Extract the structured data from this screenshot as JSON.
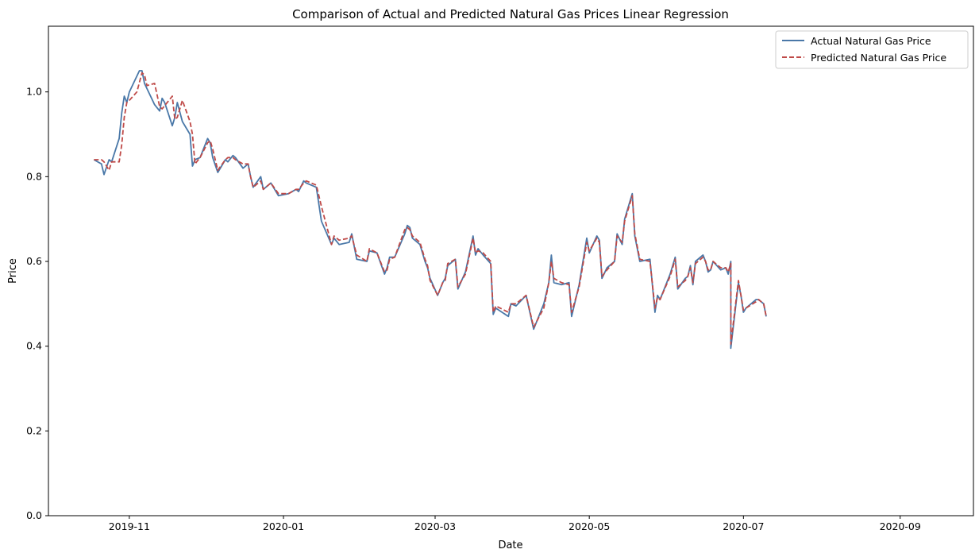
{
  "chart_data": {
    "type": "line",
    "title": "Comparison of Actual and Predicted Natural Gas Prices Linear Regression",
    "xlabel": "Date",
    "ylabel": "Price",
    "xlim": [
      "2019-09-30",
      "2020-09-30"
    ],
    "ylim": [
      0,
      1.155
    ],
    "x_ticks": [
      "2019-11",
      "2020-01",
      "2020-03",
      "2020-05",
      "2020-07",
      "2020-09"
    ],
    "y_ticks": [
      "0.0",
      "0.2",
      "0.4",
      "0.6",
      "0.8",
      "1.0"
    ],
    "legend_position": "top-right",
    "grid": false,
    "series": [
      {
        "name": "Actual Natural Gas Price",
        "color": "#4a78a8",
        "dash": "solid",
        "points": [
          [
            "2019-10-18",
            0.84
          ],
          [
            "2019-10-21",
            0.83
          ],
          [
            "2019-10-22",
            0.805
          ],
          [
            "2019-10-24",
            0.84
          ],
          [
            "2019-10-25",
            0.835
          ],
          [
            "2019-10-28",
            0.89
          ],
          [
            "2019-10-29",
            0.95
          ],
          [
            "2019-10-30",
            0.99
          ],
          [
            "2019-10-31",
            0.975
          ],
          [
            "2019-11-01",
            1.0
          ],
          [
            "2019-11-05",
            1.05
          ],
          [
            "2019-11-06",
            1.05
          ],
          [
            "2019-11-07",
            1.02
          ],
          [
            "2019-11-11",
            0.97
          ],
          [
            "2019-11-13",
            0.955
          ],
          [
            "2019-11-14",
            0.985
          ],
          [
            "2019-11-15",
            0.975
          ],
          [
            "2019-11-18",
            0.92
          ],
          [
            "2019-11-19",
            0.94
          ],
          [
            "2019-11-20",
            0.975
          ],
          [
            "2019-11-22",
            0.93
          ],
          [
            "2019-11-25",
            0.9
          ],
          [
            "2019-11-26",
            0.825
          ],
          [
            "2019-11-27",
            0.84
          ],
          [
            "2019-11-29",
            0.845
          ],
          [
            "2019-12-02",
            0.89
          ],
          [
            "2019-12-03",
            0.88
          ],
          [
            "2019-12-04",
            0.845
          ],
          [
            "2019-12-06",
            0.81
          ],
          [
            "2019-12-09",
            0.84
          ],
          [
            "2019-12-10",
            0.835
          ],
          [
            "2019-12-12",
            0.85
          ],
          [
            "2019-12-13",
            0.845
          ],
          [
            "2019-12-16",
            0.82
          ],
          [
            "2019-12-18",
            0.83
          ],
          [
            "2019-12-19",
            0.8
          ],
          [
            "2019-12-20",
            0.775
          ],
          [
            "2019-12-23",
            0.8
          ],
          [
            "2019-12-24",
            0.77
          ],
          [
            "2019-12-27",
            0.785
          ],
          [
            "2019-12-30",
            0.755
          ],
          [
            "2020-01-03",
            0.76
          ],
          [
            "2020-01-06",
            0.77
          ],
          [
            "2020-01-07",
            0.765
          ],
          [
            "2020-01-09",
            0.79
          ],
          [
            "2020-01-10",
            0.785
          ],
          [
            "2020-01-14",
            0.775
          ],
          [
            "2020-01-16",
            0.695
          ],
          [
            "2020-01-20",
            0.64
          ],
          [
            "2020-01-21",
            0.655
          ],
          [
            "2020-01-23",
            0.64
          ],
          [
            "2020-01-27",
            0.645
          ],
          [
            "2020-01-28",
            0.665
          ],
          [
            "2020-01-30",
            0.605
          ],
          [
            "2020-02-03",
            0.6
          ],
          [
            "2020-02-04",
            0.625
          ],
          [
            "2020-02-07",
            0.62
          ],
          [
            "2020-02-10",
            0.57
          ],
          [
            "2020-02-11",
            0.585
          ],
          [
            "2020-02-12",
            0.61
          ],
          [
            "2020-02-14",
            0.61
          ],
          [
            "2020-02-18",
            0.665
          ],
          [
            "2020-02-19",
            0.685
          ],
          [
            "2020-02-20",
            0.68
          ],
          [
            "2020-02-21",
            0.655
          ],
          [
            "2020-02-24",
            0.64
          ],
          [
            "2020-02-26",
            0.6
          ],
          [
            "2020-02-27",
            0.585
          ],
          [
            "2020-02-28",
            0.56
          ],
          [
            "2020-03-02",
            0.52
          ],
          [
            "2020-03-04",
            0.55
          ],
          [
            "2020-03-05",
            0.56
          ],
          [
            "2020-03-06",
            0.59
          ],
          [
            "2020-03-09",
            0.605
          ],
          [
            "2020-03-10",
            0.535
          ],
          [
            "2020-03-13",
            0.575
          ],
          [
            "2020-03-16",
            0.66
          ],
          [
            "2020-03-17",
            0.615
          ],
          [
            "2020-03-18",
            0.63
          ],
          [
            "2020-03-20",
            0.615
          ],
          [
            "2020-03-23",
            0.595
          ],
          [
            "2020-03-24",
            0.475
          ],
          [
            "2020-03-25",
            0.49
          ],
          [
            "2020-03-30",
            0.47
          ],
          [
            "2020-03-31",
            0.5
          ],
          [
            "2020-04-02",
            0.495
          ],
          [
            "2020-04-06",
            0.52
          ],
          [
            "2020-04-09",
            0.44
          ],
          [
            "2020-04-13",
            0.5
          ],
          [
            "2020-04-15",
            0.55
          ],
          [
            "2020-04-16",
            0.615
          ],
          [
            "2020-04-17",
            0.55
          ],
          [
            "2020-04-20",
            0.545
          ],
          [
            "2020-04-23",
            0.55
          ],
          [
            "2020-04-24",
            0.47
          ],
          [
            "2020-04-27",
            0.545
          ],
          [
            "2020-04-30",
            0.655
          ],
          [
            "2020-05-01",
            0.62
          ],
          [
            "2020-05-04",
            0.66
          ],
          [
            "2020-05-05",
            0.65
          ],
          [
            "2020-05-06",
            0.56
          ],
          [
            "2020-05-08",
            0.585
          ],
          [
            "2020-05-11",
            0.6
          ],
          [
            "2020-05-12",
            0.665
          ],
          [
            "2020-05-14",
            0.64
          ],
          [
            "2020-05-15",
            0.7
          ],
          [
            "2020-05-18",
            0.76
          ],
          [
            "2020-05-19",
            0.66
          ],
          [
            "2020-05-21",
            0.6
          ],
          [
            "2020-05-25",
            0.605
          ],
          [
            "2020-05-27",
            0.48
          ],
          [
            "2020-05-28",
            0.52
          ],
          [
            "2020-05-29",
            0.51
          ],
          [
            "2020-06-02",
            0.57
          ],
          [
            "2020-06-04",
            0.61
          ],
          [
            "2020-06-05",
            0.535
          ],
          [
            "2020-06-08",
            0.56
          ],
          [
            "2020-06-09",
            0.565
          ],
          [
            "2020-06-10",
            0.59
          ],
          [
            "2020-06-11",
            0.545
          ],
          [
            "2020-06-12",
            0.6
          ],
          [
            "2020-06-15",
            0.615
          ],
          [
            "2020-06-16",
            0.6
          ],
          [
            "2020-06-17",
            0.575
          ],
          [
            "2020-06-18",
            0.58
          ],
          [
            "2020-06-19",
            0.6
          ],
          [
            "2020-06-22",
            0.58
          ],
          [
            "2020-06-24",
            0.585
          ],
          [
            "2020-06-25",
            0.57
          ],
          [
            "2020-06-26",
            0.6
          ],
          [
            "2020-06-29",
            0.55
          ],
          [
            "2020-06-30",
            0.52
          ],
          [
            "2020-07-01",
            0.48
          ],
          [
            "2020-07-02",
            0.49
          ],
          [
            "2020-07-06",
            0.51
          ],
          [
            "2020-07-07",
            0.51
          ],
          [
            "2020-07-08",
            0.505
          ],
          [
            "2020-07-09",
            0.5
          ],
          [
            "2020-07-10",
            0.47
          ],
          [
            "2020-06-26",
            0.395
          ]
        ]
      },
      {
        "name": "Predicted Natural Gas Price",
        "color": "#bf4a48",
        "dash": "dashed",
        "points": [
          [
            "2019-10-18",
            0.84
          ],
          [
            "2019-10-21",
            0.84
          ],
          [
            "2019-10-22",
            0.835
          ],
          [
            "2019-10-24",
            0.815
          ],
          [
            "2019-10-25",
            0.835
          ],
          [
            "2019-10-28",
            0.835
          ],
          [
            "2019-10-29",
            0.875
          ],
          [
            "2019-10-30",
            0.94
          ],
          [
            "2019-10-31",
            0.975
          ],
          [
            "2019-11-01",
            0.98
          ],
          [
            "2019-11-04",
            1.0
          ],
          [
            "2019-11-06",
            1.045
          ],
          [
            "2019-11-07",
            1.04
          ],
          [
            "2019-11-08",
            1.015
          ],
          [
            "2019-11-11",
            1.02
          ],
          [
            "2019-11-13",
            0.965
          ],
          [
            "2019-11-14",
            0.96
          ],
          [
            "2019-11-18",
            0.99
          ],
          [
            "2019-11-19",
            0.935
          ],
          [
            "2019-11-20",
            0.94
          ],
          [
            "2019-11-22",
            0.98
          ],
          [
            "2019-11-25",
            0.93
          ],
          [
            "2019-11-26",
            0.9
          ],
          [
            "2019-11-27",
            0.83
          ],
          [
            "2019-11-29",
            0.845
          ],
          [
            "2019-12-02",
            0.88
          ],
          [
            "2019-12-03",
            0.885
          ],
          [
            "2019-12-04",
            0.865
          ],
          [
            "2019-12-06",
            0.815
          ],
          [
            "2019-12-09",
            0.84
          ],
          [
            "2019-12-10",
            0.845
          ],
          [
            "2019-12-12",
            0.845
          ],
          [
            "2019-12-13",
            0.84
          ],
          [
            "2019-12-16",
            0.83
          ],
          [
            "2019-12-18",
            0.83
          ],
          [
            "2019-12-19",
            0.8
          ],
          [
            "2019-12-20",
            0.775
          ],
          [
            "2019-12-23",
            0.79
          ],
          [
            "2019-12-24",
            0.77
          ],
          [
            "2019-12-27",
            0.785
          ],
          [
            "2019-12-30",
            0.76
          ],
          [
            "2020-01-03",
            0.76
          ],
          [
            "2020-01-06",
            0.77
          ],
          [
            "2020-01-07",
            0.77
          ],
          [
            "2020-01-09",
            0.785
          ],
          [
            "2020-01-10",
            0.79
          ],
          [
            "2020-01-14",
            0.78
          ],
          [
            "2020-01-16",
            0.73
          ],
          [
            "2020-01-20",
            0.64
          ],
          [
            "2020-01-21",
            0.66
          ],
          [
            "2020-01-23",
            0.65
          ],
          [
            "2020-01-27",
            0.655
          ],
          [
            "2020-01-28",
            0.66
          ],
          [
            "2020-01-30",
            0.615
          ],
          [
            "2020-02-03",
            0.6
          ],
          [
            "2020-02-04",
            0.63
          ],
          [
            "2020-02-07",
            0.62
          ],
          [
            "2020-02-10",
            0.575
          ],
          [
            "2020-02-11",
            0.58
          ],
          [
            "2020-02-12",
            0.605
          ],
          [
            "2020-02-14",
            0.61
          ],
          [
            "2020-02-18",
            0.675
          ],
          [
            "2020-02-19",
            0.68
          ],
          [
            "2020-02-20",
            0.675
          ],
          [
            "2020-02-21",
            0.66
          ],
          [
            "2020-02-24",
            0.645
          ],
          [
            "2020-02-26",
            0.605
          ],
          [
            "2020-02-27",
            0.59
          ],
          [
            "2020-02-28",
            0.555
          ],
          [
            "2020-03-02",
            0.52
          ],
          [
            "2020-03-04",
            0.55
          ],
          [
            "2020-03-05",
            0.555
          ],
          [
            "2020-03-06",
            0.595
          ],
          [
            "2020-03-09",
            0.605
          ],
          [
            "2020-03-10",
            0.54
          ],
          [
            "2020-03-13",
            0.57
          ],
          [
            "2020-03-16",
            0.655
          ],
          [
            "2020-03-17",
            0.62
          ],
          [
            "2020-03-18",
            0.625
          ],
          [
            "2020-03-20",
            0.62
          ],
          [
            "2020-03-23",
            0.6
          ],
          [
            "2020-03-24",
            0.48
          ],
          [
            "2020-03-25",
            0.495
          ],
          [
            "2020-03-30",
            0.48
          ],
          [
            "2020-03-31",
            0.5
          ],
          [
            "2020-04-02",
            0.5
          ],
          [
            "2020-04-06",
            0.52
          ],
          [
            "2020-04-09",
            0.445
          ],
          [
            "2020-04-13",
            0.49
          ],
          [
            "2020-04-15",
            0.55
          ],
          [
            "2020-04-16",
            0.6
          ],
          [
            "2020-04-17",
            0.56
          ],
          [
            "2020-04-20",
            0.55
          ],
          [
            "2020-04-23",
            0.545
          ],
          [
            "2020-04-24",
            0.48
          ],
          [
            "2020-04-27",
            0.54
          ],
          [
            "2020-04-30",
            0.645
          ],
          [
            "2020-05-01",
            0.625
          ],
          [
            "2020-05-04",
            0.655
          ],
          [
            "2020-05-05",
            0.645
          ],
          [
            "2020-05-06",
            0.565
          ],
          [
            "2020-05-08",
            0.58
          ],
          [
            "2020-05-11",
            0.6
          ],
          [
            "2020-05-12",
            0.66
          ],
          [
            "2020-05-14",
            0.645
          ],
          [
            "2020-05-15",
            0.695
          ],
          [
            "2020-05-18",
            0.755
          ],
          [
            "2020-05-19",
            0.665
          ],
          [
            "2020-05-21",
            0.605
          ],
          [
            "2020-05-25",
            0.6
          ],
          [
            "2020-05-27",
            0.49
          ],
          [
            "2020-05-28",
            0.515
          ],
          [
            "2020-05-29",
            0.51
          ],
          [
            "2020-06-02",
            0.565
          ],
          [
            "2020-06-04",
            0.605
          ],
          [
            "2020-06-05",
            0.54
          ],
          [
            "2020-06-08",
            0.555
          ],
          [
            "2020-06-09",
            0.565
          ],
          [
            "2020-06-10",
            0.585
          ],
          [
            "2020-06-11",
            0.55
          ],
          [
            "2020-06-12",
            0.595
          ],
          [
            "2020-06-15",
            0.61
          ],
          [
            "2020-06-16",
            0.6
          ],
          [
            "2020-06-17",
            0.58
          ],
          [
            "2020-06-18",
            0.58
          ],
          [
            "2020-06-19",
            0.6
          ],
          [
            "2020-06-22",
            0.585
          ],
          [
            "2020-06-24",
            0.585
          ],
          [
            "2020-06-25",
            0.575
          ],
          [
            "2020-06-26",
            0.595
          ],
          [
            "2020-06-29",
            0.555
          ],
          [
            "2020-06-30",
            0.52
          ],
          [
            "2020-07-01",
            0.485
          ],
          [
            "2020-07-02",
            0.49
          ],
          [
            "2020-07-06",
            0.505
          ],
          [
            "2020-07-07",
            0.51
          ],
          [
            "2020-07-08",
            0.505
          ],
          [
            "2020-07-09",
            0.5
          ],
          [
            "2020-07-10",
            0.47
          ],
          [
            "2020-06-26",
            0.405
          ]
        ]
      }
    ]
  }
}
